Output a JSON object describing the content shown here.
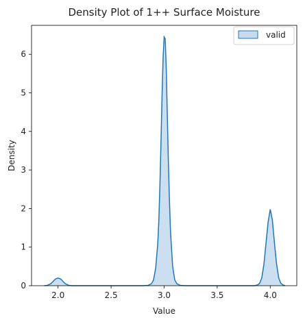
{
  "chart_data": {
    "type": "area",
    "title": "Density Plot of 1++ Surface Moisture",
    "xlabel": "Value",
    "ylabel": "Density",
    "xlim": [
      1.75,
      4.25
    ],
    "ylim": [
      0,
      6.75
    ],
    "xticks": [
      "2.0",
      "2.5",
      "3.0",
      "3.5",
      "4.0"
    ],
    "yticks": [
      "0",
      "1",
      "2",
      "3",
      "4",
      "5",
      "6"
    ],
    "grid": false,
    "legend": {
      "position": "top-right",
      "entries": [
        "valid"
      ]
    },
    "series": [
      {
        "name": "valid",
        "x": [
          1.87,
          1.9,
          1.93,
          1.95,
          1.97,
          1.98,
          2.0,
          2.02,
          2.03,
          2.05,
          2.07,
          2.1,
          2.13,
          2.2,
          2.5,
          2.8,
          2.85,
          2.88,
          2.9,
          2.92,
          2.94,
          2.95,
          2.96,
          2.97,
          2.98,
          2.99,
          3.0,
          3.01,
          3.02,
          3.03,
          3.04,
          3.05,
          3.06,
          3.08,
          3.1,
          3.12,
          3.15,
          3.2,
          3.5,
          3.8,
          3.85,
          3.88,
          3.9,
          3.92,
          3.94,
          3.96,
          3.98,
          4.0,
          4.02,
          4.04,
          4.06,
          4.08,
          4.1,
          4.12,
          4.14
        ],
        "y": [
          0.0,
          0.01,
          0.05,
          0.1,
          0.16,
          0.18,
          0.2,
          0.18,
          0.16,
          0.1,
          0.05,
          0.01,
          0.0,
          0.0,
          0.0,
          0.0,
          0.01,
          0.05,
          0.15,
          0.45,
          1.1,
          1.7,
          2.6,
          3.7,
          4.9,
          5.9,
          6.45,
          6.4,
          5.6,
          4.4,
          3.2,
          2.2,
          1.4,
          0.5,
          0.15,
          0.05,
          0.01,
          0.0,
          0.0,
          0.0,
          0.0,
          0.02,
          0.06,
          0.2,
          0.55,
          1.1,
          1.65,
          1.98,
          1.7,
          1.1,
          0.55,
          0.2,
          0.06,
          0.02,
          0.0
        ]
      }
    ],
    "colors": {
      "fill": "#c6dbef",
      "line": "#1f77b4"
    }
  }
}
